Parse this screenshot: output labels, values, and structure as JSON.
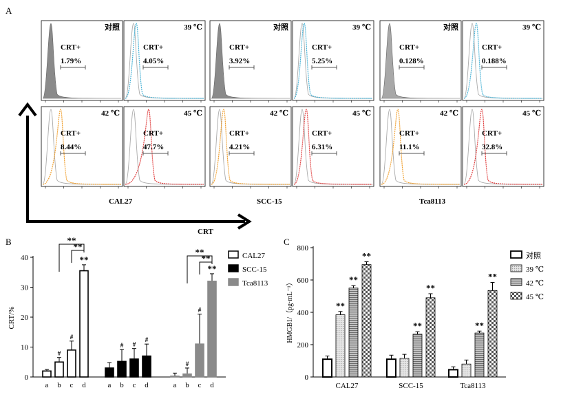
{
  "panelA": {
    "letter": "A",
    "marker": "CRT+",
    "rows": [
      [
        {
          "label": "对照",
          "value": "1.79%",
          "color": "#8a8a8a",
          "shift": 0,
          "fill": true
        },
        {
          "label": "39 ℃",
          "value": "4.05%",
          "color": "#4ab3d6",
          "shift": 4,
          "fill": false
        },
        {
          "label": "对照",
          "value": "3.92%",
          "color": "#8a8a8a",
          "shift": 0,
          "fill": true
        },
        {
          "label": "39 ℃",
          "value": "5.25%",
          "color": "#4ab3d6",
          "shift": 3,
          "fill": false
        },
        {
          "label": "对照",
          "value": "0.128%",
          "color": "#a8a8a8",
          "shift": 0,
          "fill": true
        },
        {
          "label": "39 ℃",
          "value": "0.188%",
          "color": "#4ab3d6",
          "shift": 6,
          "fill": false
        }
      ],
      [
        {
          "label": "42 ℃",
          "value": "8.44%",
          "color": "#f0a030",
          "shift": 14,
          "fill": false
        },
        {
          "label": "45 ℃",
          "value": "47.7%",
          "color": "#e04040",
          "shift": 22,
          "fill": false
        },
        {
          "label": "42 ℃",
          "value": "4.21%",
          "color": "#f0a030",
          "shift": 6,
          "fill": false
        },
        {
          "label": "45 ℃",
          "value": "6.31%",
          "color": "#e04040",
          "shift": 6,
          "fill": false
        },
        {
          "label": "42 ℃",
          "value": "11.1%",
          "color": "#f0a030",
          "shift": 12,
          "fill": false
        },
        {
          "label": "45 ℃",
          "value": "32.8%",
          "color": "#e04040",
          "shift": 14,
          "fill": false
        }
      ]
    ],
    "groups": [
      "CAL27",
      "SCC-15",
      "Tca8113"
    ],
    "x_axis_label": "CRT"
  },
  "chart_data": [
    {
      "type": "bar",
      "panel": "B",
      "ylabel": "CRT/%",
      "ylim": [
        0,
        40
      ],
      "yticks": [
        0,
        10,
        20,
        30,
        40
      ],
      "sub_categories": [
        "a",
        "b",
        "c",
        "d"
      ],
      "series": [
        {
          "name": "CAL27",
          "color": "#ffffff",
          "values": [
            2,
            5,
            9,
            35.5
          ],
          "errors": [
            0.5,
            1.5,
            3,
            2
          ],
          "marks": [
            "",
            "#",
            "#",
            "**"
          ]
        },
        {
          "name": "SCC-15",
          "color": "#000000",
          "values": [
            3,
            5.2,
            6,
            7
          ],
          "errors": [
            1.8,
            4,
            3.5,
            4
          ],
          "marks": [
            "",
            "#",
            "#",
            "#"
          ]
        },
        {
          "name": "Tca8113",
          "color": "#8a8a8a",
          "values": [
            0.3,
            1,
            11,
            32
          ],
          "errors": [
            1,
            2,
            10,
            2.5
          ],
          "marks": [
            "",
            "#",
            "#",
            "**"
          ]
        }
      ],
      "brackets": [
        {
          "label": "**",
          "sub": "**",
          "series": 0
        },
        {
          "label": "**",
          "sub": "**",
          "series": 2
        }
      ]
    },
    {
      "type": "bar",
      "panel": "C",
      "ylabel": "HMGB1/（pg·mL⁻¹）",
      "ylim": [
        0,
        800
      ],
      "yticks": [
        0,
        200,
        400,
        600,
        800
      ],
      "categories": [
        "CAL27",
        "SCC-15",
        "Tca8113"
      ],
      "series": [
        {
          "name": "对照",
          "pattern": "white",
          "values": [
            110,
            110,
            45
          ],
          "errors": [
            20,
            25,
            18
          ],
          "marks": [
            "",
            "",
            ""
          ]
        },
        {
          "name": "39 ℃",
          "pattern": "dots",
          "values": [
            385,
            115,
            80
          ],
          "errors": [
            20,
            25,
            25
          ],
          "marks": [
            "**",
            "",
            ""
          ]
        },
        {
          "name": "42 ℃",
          "pattern": "hlines",
          "values": [
            550,
            265,
            272
          ],
          "errors": [
            15,
            15,
            12
          ],
          "marks": [
            "**",
            "**",
            "**"
          ]
        },
        {
          "name": "45 ℃",
          "pattern": "checker",
          "values": [
            695,
            490,
            535
          ],
          "errors": [
            18,
            25,
            50
          ],
          "marks": [
            "**",
            "**",
            "**"
          ]
        }
      ]
    }
  ],
  "labels": {
    "B": "B",
    "C": "C"
  }
}
